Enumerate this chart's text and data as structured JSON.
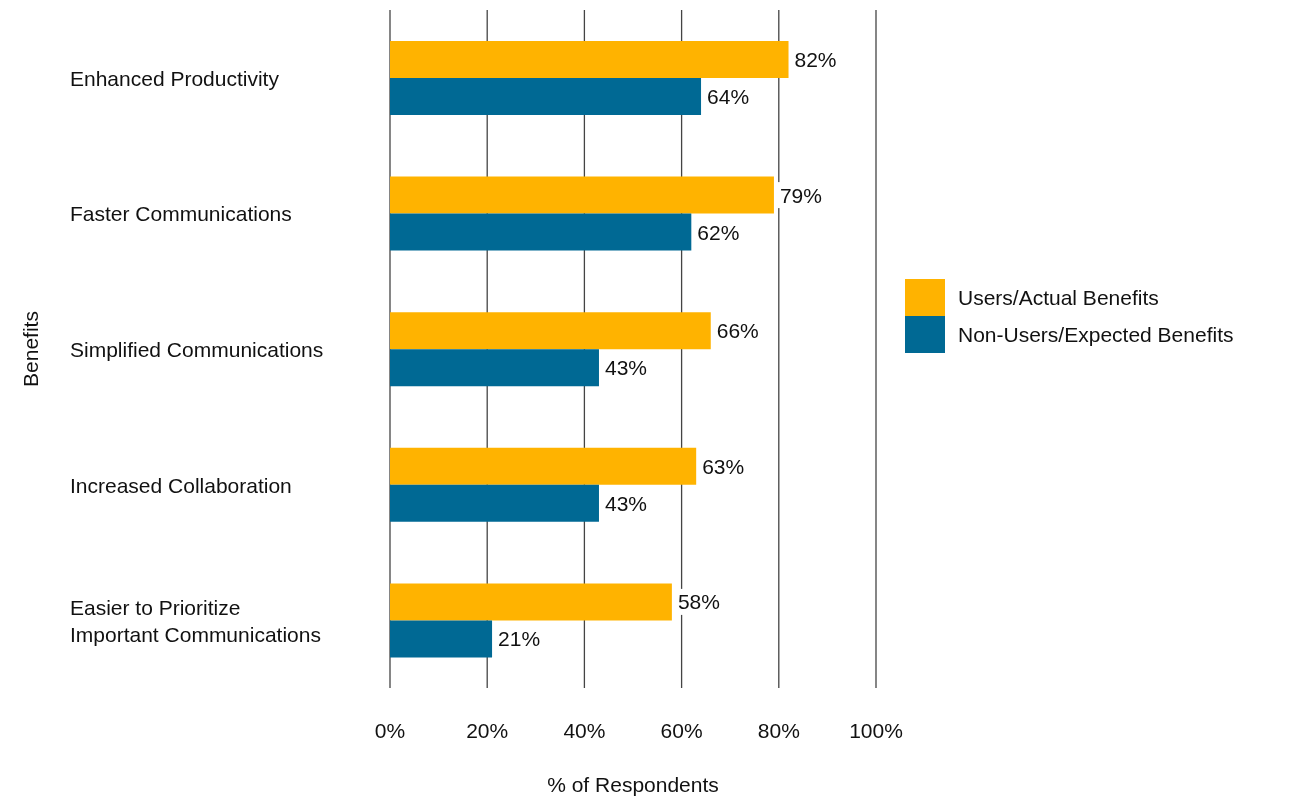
{
  "chart_data": {
    "type": "bar",
    "orientation": "horizontal",
    "xlabel": "% of Respondents",
    "ylabel": "Benefits",
    "categories": [
      "Enhanced Productivity",
      "Faster Communications",
      "Simplified Communications",
      "Increased Collaboration",
      "Easier to Prioritize Important Communications"
    ],
    "series": [
      {
        "name": "Users/Actual Benefits",
        "color": "#ffb300",
        "values": [
          82,
          79,
          66,
          63,
          58
        ],
        "value_labels": [
          "82%",
          "79%",
          "66%",
          "63%",
          "58%"
        ]
      },
      {
        "name": "Non-Users/Expected Benefits",
        "color": "#006994",
        "values": [
          64,
          62,
          43,
          43,
          21
        ],
        "value_labels": [
          "64%",
          "62%",
          "43%",
          "43%",
          "21%"
        ]
      }
    ],
    "xlim": [
      0,
      100
    ],
    "xticks": [
      {
        "value": 0,
        "label": "0%"
      },
      {
        "value": 20,
        "label": "20%"
      },
      {
        "value": 40,
        "label": "40%"
      },
      {
        "value": 60,
        "label": "60%"
      },
      {
        "value": 80,
        "label": "80%"
      },
      {
        "value": 100,
        "label": "100%"
      }
    ],
    "grid": "x",
    "legend": "right"
  }
}
